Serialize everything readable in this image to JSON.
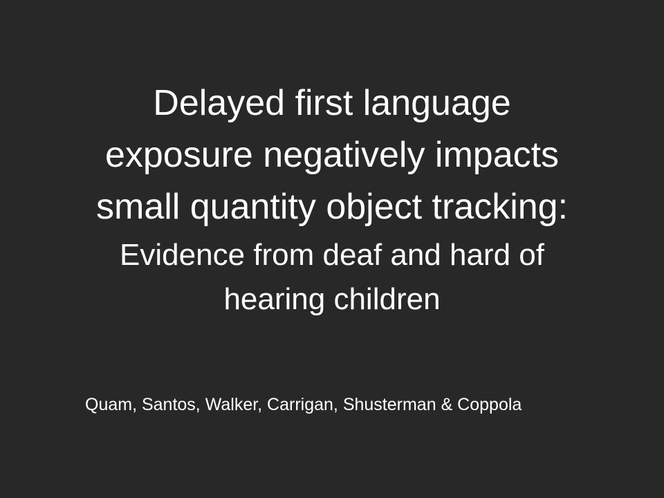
{
  "slide": {
    "title_lines": [
      "Delayed first language",
      "exposure negatively impacts",
      "small quantity object tracking:"
    ],
    "subtitle_lines": [
      "Evidence from deaf and hard of",
      "hearing children"
    ],
    "authors": "Quam, Santos, Walker, Carrigan, Shusterman & Coppola"
  },
  "colors": {
    "background": "#282828",
    "text": "#ffffff"
  }
}
